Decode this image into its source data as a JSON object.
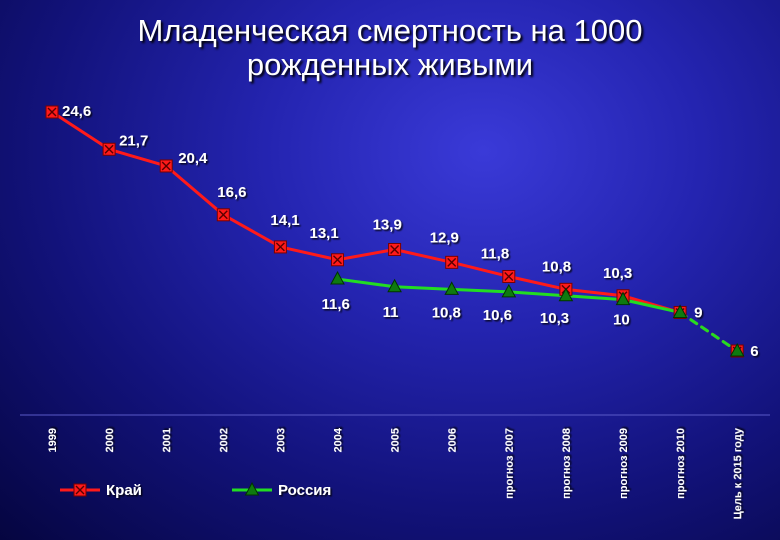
{
  "title_line1": "Младенческая смертность на 1000",
  "title_line2": "рожденных живыми",
  "chart_data": {
    "type": "line",
    "categories": [
      "1999",
      "2000",
      "2001",
      "2002",
      "2003",
      "2004",
      "2005",
      "2006",
      "прогноз 2007",
      "прогноз 2008",
      "прогноз 2009",
      "прогноз 2010",
      "Цель к 2015 году"
    ],
    "series": [
      {
        "name": "Край",
        "color": "#ff1a1a",
        "marker": "square-x",
        "values": [
          24.6,
          21.7,
          20.4,
          16.6,
          14.1,
          13.1,
          13.9,
          12.9,
          11.8,
          10.8,
          10.3,
          9,
          6
        ],
        "labels": [
          "24,6",
          "21,7",
          "20,4",
          "16,6",
          "14,1",
          "13,1",
          "13,9",
          "12,9",
          "11,8",
          "10,8",
          "10,3",
          "9",
          "6"
        ],
        "dashed_last_segment": true
      },
      {
        "name": "Россия",
        "color": "#22dd22",
        "marker": "triangle",
        "values": [
          null,
          null,
          null,
          null,
          null,
          11.6,
          11,
          10.8,
          10.6,
          10.3,
          10,
          9,
          6
        ],
        "labels": [
          "",
          "",
          "",
          "",
          "",
          "11,6",
          "11",
          "10,8",
          "10,6",
          "10,3",
          "10",
          "",
          ""
        ],
        "dashed_last_segment": true
      }
    ],
    "legend_position": "bottom"
  }
}
